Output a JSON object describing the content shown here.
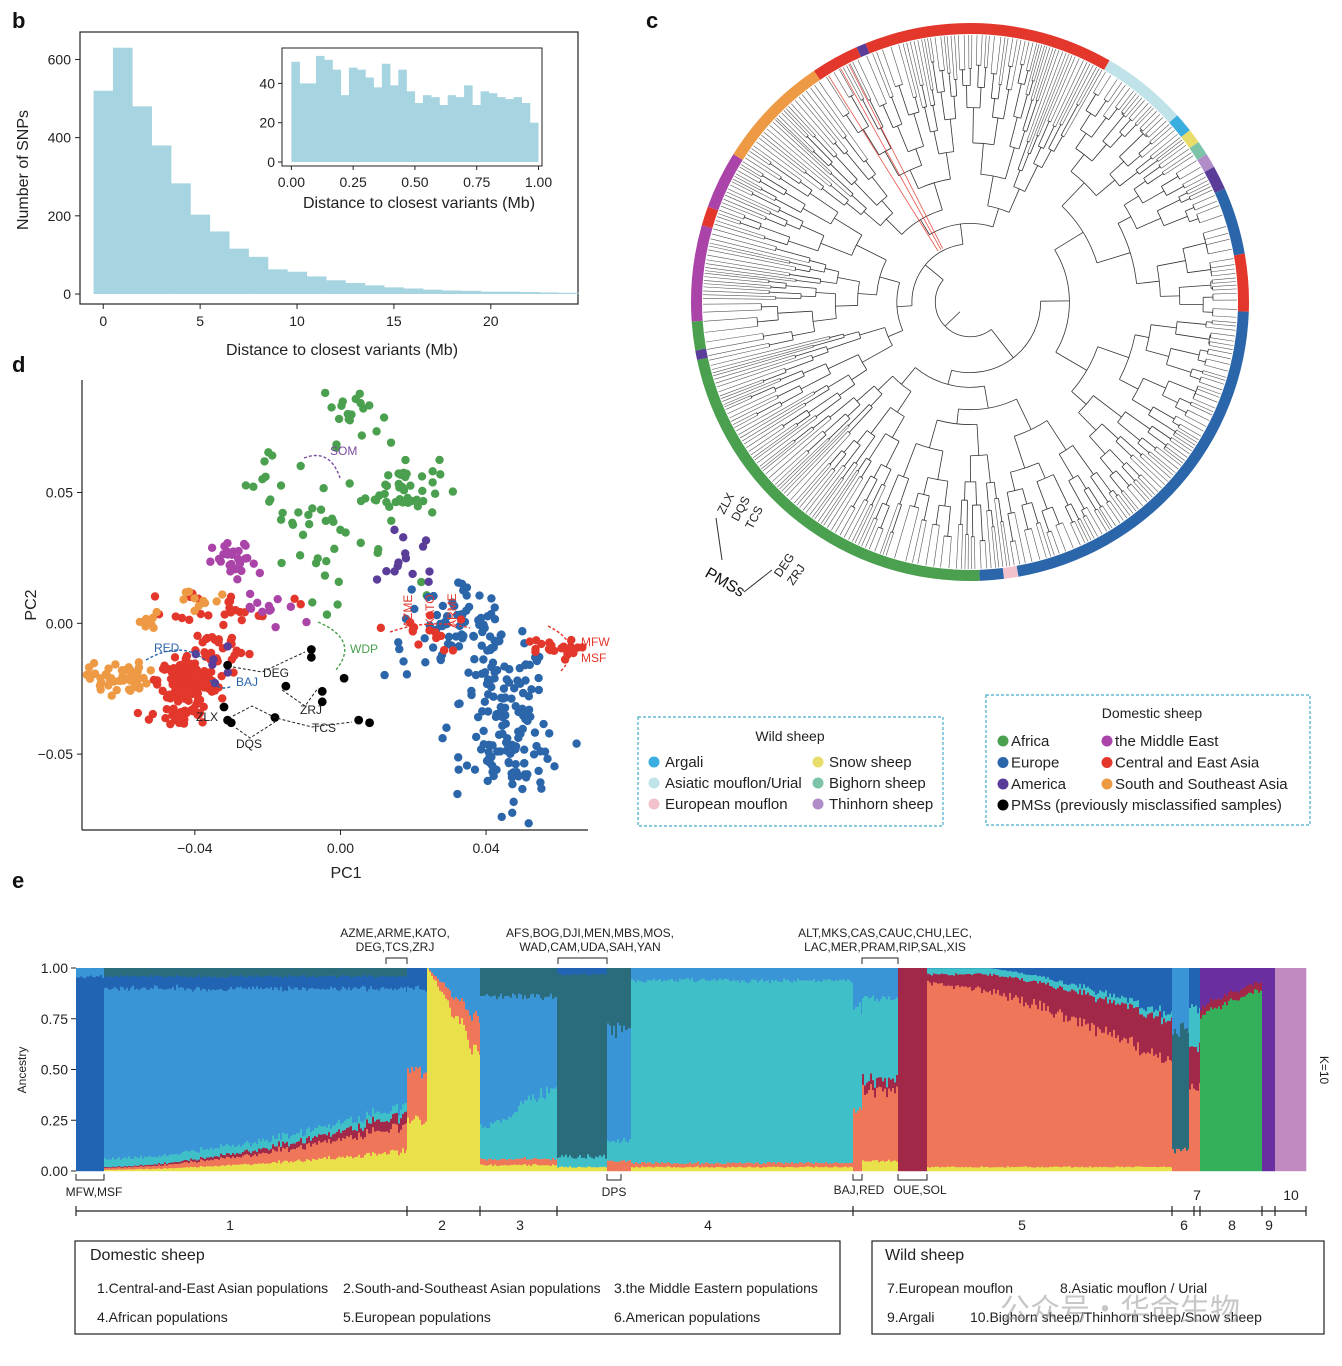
{
  "panels": {
    "b": "b",
    "c": "c",
    "d": "d",
    "e": "e"
  },
  "chart_data": [
    {
      "type": "bar",
      "panel": "b",
      "xlabel": "Distance to closest variants (Mb)",
      "ylabel": "Number of SNPs",
      "xticks": [
        "0",
        "5",
        "10",
        "15",
        "20"
      ],
      "yticks": [
        "0",
        "200",
        "400",
        "600"
      ],
      "xlim": [
        -1.2,
        24.5
      ],
      "ylim": [
        0,
        660
      ],
      "bin_width": 1,
      "bin_start": -0.5,
      "values": [
        520,
        630,
        480,
        380,
        283,
        203,
        160,
        116,
        95,
        63,
        57,
        45,
        35,
        28,
        22,
        17,
        14,
        11,
        9,
        8,
        6,
        6,
        5,
        4,
        3
      ],
      "color": "#a6d4e0",
      "inset": {
        "xlabel": "Distance to closest variants (Mb)",
        "xticks": [
          "0.00",
          "0.25",
          "0.50",
          "0.75",
          "1.00"
        ],
        "yticks": [
          "0",
          "20",
          "40"
        ],
        "xlim": [
          -0.04,
          1.07
        ],
        "ylim": [
          0,
          57
        ],
        "bin_width": 0.04,
        "values": [
          51,
          40,
          40,
          54,
          52,
          47,
          34,
          48,
          47,
          43,
          38,
          50,
          39,
          47,
          36,
          30,
          34,
          33,
          29,
          34,
          33,
          39,
          29,
          36,
          35,
          33,
          32,
          33,
          30,
          20
        ]
      }
    },
    {
      "type": "scatter",
      "panel": "d",
      "xlabel": "PC1",
      "ylabel": "PC2",
      "xticks": [
        "−0.04",
        "0.00",
        "0.04"
      ],
      "yticks": [
        "0.05",
        "0.00",
        "−0.05"
      ],
      "xlim": [
        -0.071,
        0.068
      ],
      "ylim": [
        -0.079,
        0.093
      ],
      "series": [
        {
          "name": "Africa",
          "color": "#4aa04e",
          "clusters": [
            [
              0.003,
              0.081,
              0.004,
              0.006,
              22
            ],
            [
              0.017,
              0.052,
              0.005,
              0.006,
              45
            ],
            [
              -0.018,
              0.055,
              0.004,
              0.006,
              10
            ],
            [
              -0.01,
              0.04,
              0.006,
              0.005,
              14
            ],
            [
              -0.001,
              0.027,
              0.007,
              0.009,
              18
            ],
            [
              0.024,
              0.013,
              0.002,
              0.002,
              2
            ]
          ]
        },
        {
          "name": "Europe",
          "color": "#2c66aa",
          "clusters": [
            [
              0.032,
              -0.005,
              0.01,
              0.008,
              60
            ],
            [
              0.045,
              -0.03,
              0.006,
              0.011,
              80
            ],
            [
              0.048,
              -0.05,
              0.007,
              0.006,
              60
            ],
            [
              0.05,
              -0.066,
              0.004,
              0.006,
              12
            ],
            [
              0.03,
              0.006,
              0.008,
              0.006,
              15
            ]
          ]
        },
        {
          "name": "Central and East Asia",
          "color": "#e3372c",
          "clusters": [
            [
              -0.042,
              -0.022,
              0.004,
              0.004,
              150
            ],
            [
              -0.044,
              -0.035,
              0.004,
              0.003,
              30
            ],
            [
              -0.03,
              0.007,
              0.008,
              0.003,
              25
            ],
            [
              -0.036,
              -0.01,
              0.006,
              0.004,
              30
            ],
            [
              0.057,
              -0.01,
              0.004,
              0.002,
              20
            ],
            [
              0.022,
              -0.003,
              0.006,
              0.004,
              14
            ]
          ]
        },
        {
          "name": "South and Southeast Asia",
          "color": "#ee9944",
          "clusters": [
            [
              -0.061,
              -0.021,
              0.004,
              0.003,
              55
            ],
            [
              -0.053,
              0.0,
              0.003,
              0.002,
              8
            ],
            [
              -0.038,
              0.009,
              0.004,
              0.003,
              10
            ]
          ]
        },
        {
          "name": "the Middle East",
          "color": "#aa44a8",
          "clusters": [
            [
              -0.029,
              0.023,
              0.003,
              0.004,
              30
            ],
            [
              -0.018,
              0.005,
              0.008,
              0.004,
              12
            ]
          ]
        },
        {
          "name": "America",
          "color": "#5a3d99",
          "clusters": [
            [
              0.019,
              0.027,
              0.004,
              0.008,
              14
            ],
            [
              -0.036,
              -0.015,
              0.003,
              0.003,
              6
            ]
          ]
        }
      ],
      "pms_points": [
        [
          -0.031,
          -0.016
        ],
        [
          -0.008,
          -0.01
        ],
        [
          -0.008,
          -0.013
        ],
        [
          -0.015,
          -0.024
        ],
        [
          -0.005,
          -0.026
        ],
        [
          -0.032,
          -0.032
        ],
        [
          -0.031,
          -0.037
        ],
        [
          -0.03,
          -0.038
        ],
        [
          -0.018,
          -0.036
        ],
        [
          -0.005,
          -0.03
        ],
        [
          0.001,
          -0.021
        ],
        [
          0.005,
          -0.037
        ],
        [
          0.008,
          -0.038
        ]
      ],
      "pms_color": "#000000",
      "annotations": [
        {
          "text": "SOM",
          "color": "#7b4a9e"
        },
        {
          "text": "RED",
          "color": "#2c66aa"
        },
        {
          "text": "BAJ",
          "color": "#2c66aa"
        },
        {
          "text": "WDP",
          "color": "#4aa04e"
        },
        {
          "text": "AZME",
          "color": "#e3372c"
        },
        {
          "text": "KATO",
          "color": "#e3372c"
        },
        {
          "text": "ARME",
          "color": "#e3372c"
        },
        {
          "text": "MFW",
          "color": "#e3372c"
        },
        {
          "text": "MSF",
          "color": "#e3372c"
        },
        {
          "text": "DEG",
          "color": "#111111"
        },
        {
          "text": "ZRJ",
          "color": "#111111"
        },
        {
          "text": "ZLX",
          "color": "#111111"
        },
        {
          "text": "DQS",
          "color": "#111111"
        },
        {
          "text": "TCS",
          "color": "#111111"
        }
      ]
    },
    {
      "type": "tree",
      "panel": "c",
      "ring_segments": [
        {
          "group": "Asiatic mouflon/Urial",
          "from": 300,
          "to": 318
        },
        {
          "group": "Argali",
          "from": 318,
          "to": 322
        },
        {
          "group": "Snow sheep",
          "from": 322,
          "to": 325
        },
        {
          "group": "Bighorn sheep",
          "from": 325,
          "to": 328
        },
        {
          "group": "Thinhorn sheep",
          "from": 328,
          "to": 331
        },
        {
          "group": "America",
          "from": 331,
          "to": 336
        },
        {
          "group": "Europe",
          "from": 336,
          "to": 350
        },
        {
          "group": "Central and East Asia",
          "from": 350,
          "to": 362
        },
        {
          "group": "Europe",
          "from": 362,
          "to": 440
        },
        {
          "group": "European mouflon",
          "from": 440,
          "to": 443
        },
        {
          "group": "Europe",
          "from": 443,
          "to": 448
        },
        {
          "group": "Africa",
          "from": 448,
          "to": 528
        },
        {
          "group": "America",
          "from": 528,
          "to": 530
        },
        {
          "group": "Africa",
          "from": 530,
          "to": 536
        },
        {
          "group": "the Middle East",
          "from": 536,
          "to": 556
        },
        {
          "group": "Central and East Asia",
          "from": 556,
          "to": 560
        },
        {
          "group": "the Middle East",
          "from": 560,
          "to": 572
        },
        {
          "group": "South and Southeast Asia",
          "from": 572,
          "to": 596
        },
        {
          "group": "Central and East Asia",
          "from": 596,
          "to": 606
        },
        {
          "group": "America",
          "from": 606,
          "to": 608
        },
        {
          "group": "Central and East Asia",
          "from": 608,
          "to": 660
        }
      ],
      "labels": {
        "pmss": "PMSs",
        "left_group": [
          "ZLX",
          "DQS",
          "TCS"
        ],
        "right_group": [
          "DEG",
          "ZRJ"
        ]
      }
    },
    {
      "type": "area",
      "panel": "e",
      "ylabel": "Ancestry",
      "yticks": [
        "0.00",
        "0.25",
        "0.50",
        "0.75",
        "1.00"
      ],
      "k_label": "K=10",
      "top_brackets": [
        {
          "lines": [
            "AZME,ARME,KATO,",
            "DEG,TCS,ZRJ"
          ]
        },
        {
          "lines": [
            "AFS,BOG,DJI,MEN,MBS,MOS,",
            "WAD,CAM,UDA,SAH,YAN"
          ]
        },
        {
          "lines": [
            "ALT,MKS,CAS,CAUC,CHU,LEC,",
            "LAC,MER,PRAM,RIP,SAL,XIS"
          ]
        }
      ],
      "bottom_brackets": [
        "MFW,MSF",
        "DPS",
        "BAJ,RED",
        "OUE,SOL"
      ],
      "group_numbers": [
        "1",
        "2",
        "3",
        "4",
        "5",
        "6",
        "7",
        "8",
        "9",
        "10"
      ]
    }
  ],
  "legends": {
    "wild": {
      "title": "Wild sheep",
      "items": [
        {
          "label": "Argali",
          "color": "#3aaedf"
        },
        {
          "label": "Snow sheep",
          "color": "#e8dc6a"
        },
        {
          "label": "Asiatic mouflon/Urial",
          "color": "#bfe3e8"
        },
        {
          "label": "Bighorn sheep",
          "color": "#7cc4a8"
        },
        {
          "label": "European mouflon",
          "color": "#f2c2cc"
        },
        {
          "label": "Thinhorn sheep",
          "color": "#b08cc8"
        }
      ]
    },
    "domestic": {
      "title": "Domestic sheep",
      "items": [
        {
          "label": "Africa",
          "color": "#4aa04e"
        },
        {
          "label": "the Middle East",
          "color": "#aa44a8"
        },
        {
          "label": "Europe",
          "color": "#2c66aa"
        },
        {
          "label": "Central and East Asia",
          "color": "#e3372c"
        },
        {
          "label": "America",
          "color": "#5a3d99"
        },
        {
          "label": "South and Southeast Asia",
          "color": "#ee9944"
        },
        {
          "label": "PMSs (previously misclassified samples)",
          "color": "#000000"
        }
      ]
    }
  },
  "groups_box": {
    "domestic": {
      "title": "Domestic sheep",
      "items": [
        "1.Central-and-East Asian populations",
        "2.South-and-Southeast Asian populations",
        "3.the Middle Eastern populations",
        "4.African populations",
        "5.European populations",
        "6.American populations"
      ]
    },
    "wild": {
      "title": "Wild sheep",
      "items": [
        "7.European mouflon",
        "8.Asiatic mouflon / Urial",
        "9.Argali",
        "10.Bighorn sheep/Thinhorn sheep/Snow sheep"
      ]
    }
  },
  "watermark": "公众号・华命生物"
}
